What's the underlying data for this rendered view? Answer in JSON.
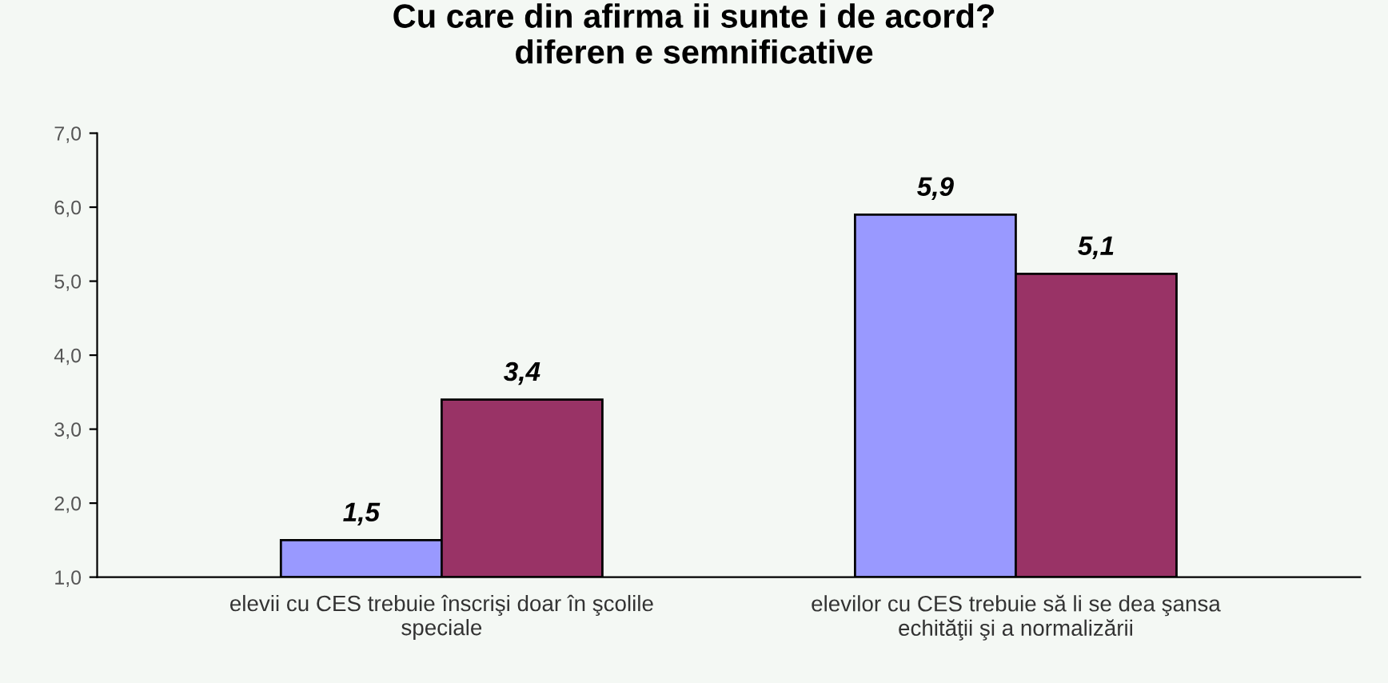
{
  "chart_data": {
    "type": "bar",
    "title": "Cu care din afirma ii sunte i de acord?\ndiferen e semnificative",
    "categories": [
      "elevii cu CES trebuie înscrişi doar în şcolile\nspeciale",
      "elevilor cu CES trebuie să li se dea şansa\nechităţii şi a normalizării"
    ],
    "series": [
      {
        "color": "#9999ff",
        "values": [
          1.5,
          5.9
        ],
        "value_labels": [
          "1,5",
          "5,9"
        ]
      },
      {
        "color": "#993366",
        "values": [
          3.4,
          5.1
        ],
        "value_labels": [
          "3,4",
          "5,1"
        ]
      }
    ],
    "ylim": [
      1,
      7
    ],
    "yticks": [
      {
        "value": 1,
        "label": "1,0"
      },
      {
        "value": 2,
        "label": "2,0"
      },
      {
        "value": 3,
        "label": "3,0"
      },
      {
        "value": 4,
        "label": "4,0"
      },
      {
        "value": 5,
        "label": "5,0"
      },
      {
        "value": 6,
        "label": "6,0"
      },
      {
        "value": 7,
        "label": "7,0"
      }
    ],
    "grid": false,
    "legend": false
  }
}
